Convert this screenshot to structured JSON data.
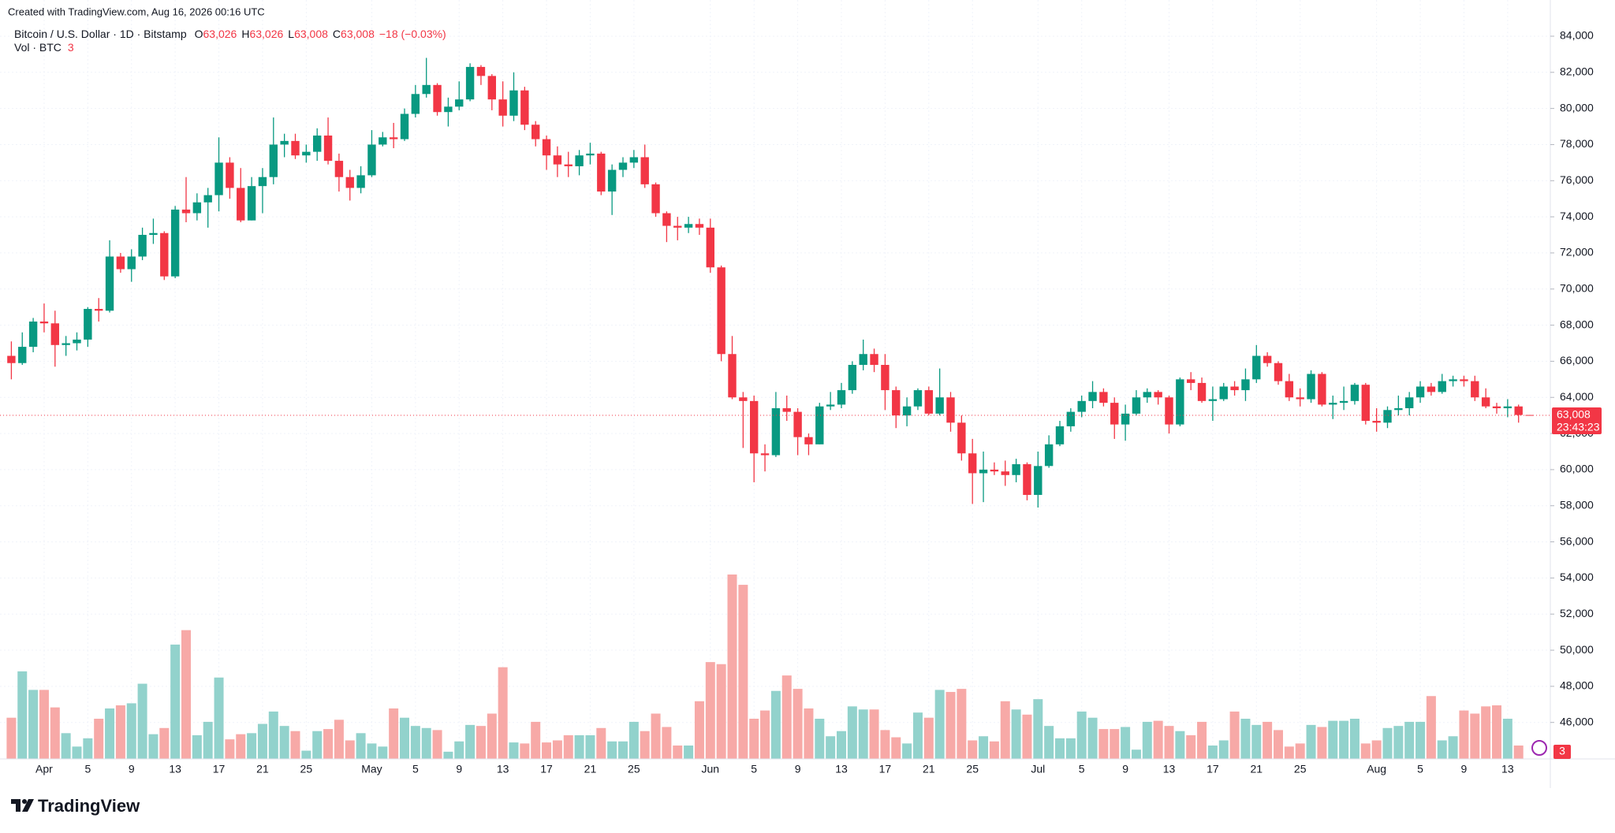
{
  "header": {
    "created": "Created with TradingView.com, Aug 16, 2026 00:16 UTC",
    "symbol": "Bitcoin / U.S. Dollar · 1D · Bitstamp",
    "ohlc_legend": [
      {
        "key": "O",
        "value": "63,026"
      },
      {
        "key": "H",
        "value": "63,026"
      },
      {
        "key": "L",
        "value": "63,008"
      },
      {
        "key": "C",
        "value": "63,008"
      }
    ],
    "change": "−18 (−0.03%)",
    "volume_legend": "Vol · BTC",
    "price_label": "63,008",
    "countdown": "23:43:23"
  },
  "footer": {
    "logo": "TradingView"
  },
  "chart_data": {
    "type": "candlestick",
    "categories": [
      "Mar 29",
      "Mar 30",
      "Mar 31",
      "Apr 1",
      "Apr 2",
      "Apr 3",
      "Apr 4",
      "Apr 5",
      "Apr 6",
      "Apr 7",
      "Apr 8",
      "Apr 9",
      "Apr 10",
      "Apr 11",
      "Apr 12",
      "Apr 13",
      "Apr 14",
      "Apr 15",
      "Apr 16",
      "Apr 17",
      "Apr 18",
      "Apr 19",
      "Apr 20",
      "Apr 21",
      "Apr 22",
      "Apr 23",
      "Apr 24",
      "Apr 25",
      "Apr 26",
      "Apr 27",
      "Apr 28",
      "Apr 29",
      "Apr 30",
      "May 1",
      "May 2",
      "May 3",
      "May 4",
      "May 5",
      "May 6",
      "May 7",
      "May 8",
      "May 9",
      "May 10",
      "May 11",
      "May 12",
      "May 13",
      "May 14",
      "May 15",
      "May 16",
      "May 17",
      "May 18",
      "May 19",
      "May 20",
      "May 21",
      "May 22",
      "May 23",
      "May 24",
      "May 25",
      "May 26",
      "May 27",
      "May 28",
      "May 29",
      "May 30",
      "May 31",
      "Jun 1",
      "Jun 2",
      "Jun 3",
      "Jun 4",
      "Jun 5",
      "Jun 6",
      "Jun 7",
      "Jun 8",
      "Jun 9",
      "Jun 10",
      "Jun 11",
      "Jun 12",
      "Jun 13",
      "Jun 14",
      "Jun 15",
      "Jun 16",
      "Jun 17",
      "Jun 18",
      "Jun 19",
      "Jun 20",
      "Jun 21",
      "Jun 22",
      "Jun 23",
      "Jun 24",
      "Jun 25",
      "Jun 26",
      "Jun 27",
      "Jun 28",
      "Jun 29",
      "Jun 30",
      "Jul 1",
      "Jul 2",
      "Jul 3",
      "Jul 4",
      "Jul 5",
      "Jul 6",
      "Jul 7",
      "Jul 8",
      "Jul 9",
      "Jul 10",
      "Jul 11",
      "Jul 12",
      "Jul 13",
      "Jul 14",
      "Jul 15",
      "Jul 16",
      "Jul 17",
      "Jul 18",
      "Jul 19",
      "Jul 20",
      "Jul 21",
      "Jul 22",
      "Jul 23",
      "Jul 24",
      "Jul 25",
      "Jul 26",
      "Jul 27",
      "Jul 28",
      "Jul 29",
      "Jul 30",
      "Jul 31",
      "Aug 1",
      "Aug 2",
      "Aug 3",
      "Aug 4",
      "Aug 5",
      "Aug 6",
      "Aug 7",
      "Aug 8",
      "Aug 9",
      "Aug 10",
      "Aug 11",
      "Aug 12",
      "Aug 13",
      "Aug 14",
      "Aug 15"
    ],
    "open": [
      66300,
      65900,
      66800,
      68200,
      68100,
      66900,
      67000,
      67200,
      68900,
      68800,
      71800,
      71100,
      71800,
      73000,
      73100,
      70700,
      74400,
      74200,
      74800,
      75200,
      77000,
      75600,
      73800,
      75700,
      76200,
      78000,
      78200,
      77400,
      77600,
      78500,
      77100,
      76200,
      75600,
      76300,
      78000,
      78400,
      78300,
      79700,
      80800,
      81300,
      79800,
      80100,
      80500,
      82300,
      81800,
      80500,
      79600,
      81000,
      79100,
      78300,
      77400,
      76900,
      76800,
      77400,
      77500,
      75400,
      76600,
      77000,
      77300,
      75800,
      74200,
      73500,
      73400,
      73600,
      73400,
      71200,
      66400,
      64000,
      63800,
      60900,
      60800,
      63400,
      63200,
      61800,
      61400,
      63500,
      63600,
      64400,
      65800,
      66400,
      65800,
      64400,
      63000,
      63500,
      64400,
      63100,
      64000,
      62600,
      60900,
      59800,
      60000,
      59900,
      59700,
      60300,
      58600,
      60200,
      61400,
      62400,
      63200,
      63800,
      64300,
      63700,
      62500,
      63100,
      64000,
      64300,
      64000,
      62500,
      65000,
      64800,
      63800,
      63900,
      64600,
      64400,
      65000,
      66300,
      65900,
      64900,
      64000,
      63900,
      65300,
      63600,
      63700,
      63800,
      64700,
      62700,
      62600,
      63300,
      63400,
      64000,
      64600,
      64300,
      64900,
      65000,
      64900,
      64000,
      63500,
      63400,
      63500,
      63026
    ],
    "high": [
      67100,
      67600,
      68400,
      69200,
      68800,
      67400,
      67600,
      69000,
      69500,
      72700,
      72000,
      72200,
      73400,
      73900,
      73200,
      74600,
      76200,
      75300,
      75600,
      78400,
      77300,
      76700,
      76200,
      76700,
      79500,
      78600,
      78600,
      78000,
      78900,
      79500,
      77500,
      76600,
      76800,
      78800,
      78700,
      79200,
      80000,
      81300,
      82800,
      81400,
      80600,
      81500,
      82500,
      82400,
      81900,
      81500,
      82000,
      81200,
      79300,
      78500,
      77900,
      77600,
      77700,
      78100,
      77600,
      76900,
      77300,
      77700,
      78000,
      75900,
      74300,
      74000,
      74000,
      73900,
      73900,
      71300,
      67400,
      64300,
      64100,
      61400,
      64300,
      64100,
      63400,
      62000,
      63700,
      64300,
      64800,
      66000,
      67200,
      66700,
      66400,
      64600,
      64000,
      64500,
      64600,
      65600,
      64300,
      63000,
      61700,
      61000,
      60400,
      60500,
      60600,
      60400,
      61000,
      61900,
      62700,
      63400,
      64100,
      64900,
      64500,
      64000,
      63600,
      64400,
      64500,
      64400,
      64100,
      65100,
      65400,
      65100,
      64600,
      64800,
      64900,
      65600,
      66900,
      66500,
      66000,
      65300,
      64500,
      65500,
      65400,
      64100,
      64600,
      64800,
      64800,
      63400,
      63500,
      64100,
      64300,
      64900,
      64800,
      65300,
      65200,
      65200,
      65200,
      64500,
      63700,
      63900,
      63600,
      63026
    ],
    "low": [
      65000,
      65800,
      66500,
      67600,
      65700,
      66300,
      66600,
      66800,
      68200,
      68700,
      70900,
      70400,
      71600,
      72500,
      70500,
      70600,
      73700,
      73800,
      73400,
      74300,
      75000,
      73700,
      73800,
      74200,
      75800,
      77300,
      77200,
      77000,
      77100,
      76900,
      75400,
      74900,
      75300,
      76200,
      77900,
      77800,
      78200,
      79500,
      80600,
      79600,
      79000,
      79900,
      80400,
      81300,
      79900,
      79000,
      79300,
      78800,
      77900,
      76600,
      76200,
      76200,
      76300,
      76900,
      75200,
      74100,
      76200,
      76700,
      75600,
      74000,
      72600,
      72700,
      73100,
      73000,
      70900,
      66000,
      63900,
      61200,
      59300,
      59900,
      60700,
      62700,
      60800,
      60800,
      61400,
      63300,
      63400,
      64200,
      65500,
      65400,
      63300,
      62300,
      62400,
      63300,
      63000,
      63000,
      62100,
      60500,
      58100,
      58200,
      59700,
      59100,
      59300,
      58300,
      57900,
      60100,
      61300,
      62100,
      62900,
      63400,
      63500,
      61700,
      61600,
      63000,
      63700,
      63600,
      62000,
      62400,
      64400,
      63700,
      62700,
      63800,
      64100,
      63800,
      64800,
      65700,
      64700,
      63800,
      63500,
      63700,
      63500,
      62800,
      63300,
      63600,
      62500,
      62100,
      62300,
      63000,
      63000,
      63700,
      64100,
      64200,
      64600,
      64600,
      63800,
      63400,
      63100,
      62900,
      62600,
      63008
    ],
    "close": [
      65900,
      66800,
      68200,
      68100,
      66900,
      67000,
      67200,
      68900,
      68800,
      71800,
      71100,
      71800,
      73000,
      73100,
      70700,
      74400,
      74200,
      74800,
      75200,
      77000,
      75600,
      73800,
      75700,
      76200,
      78000,
      78200,
      77400,
      77600,
      78500,
      77100,
      76200,
      75600,
      76300,
      78000,
      78400,
      78300,
      79700,
      80800,
      81300,
      79800,
      80100,
      80500,
      82300,
      81800,
      80500,
      79600,
      81000,
      79100,
      78300,
      77400,
      76900,
      76800,
      77400,
      77500,
      75400,
      76600,
      77000,
      77300,
      75800,
      74200,
      73500,
      73400,
      73600,
      73400,
      71200,
      66400,
      64000,
      63800,
      60900,
      60800,
      63400,
      63200,
      61800,
      61400,
      63500,
      63600,
      64400,
      65800,
      66400,
      65800,
      64400,
      63000,
      63500,
      64400,
      63100,
      64000,
      62600,
      60900,
      59800,
      60000,
      59900,
      59700,
      60300,
      58600,
      60200,
      61400,
      62400,
      63200,
      63800,
      64300,
      63700,
      62500,
      63100,
      64000,
      64300,
      64000,
      62500,
      65000,
      64800,
      63800,
      63900,
      64600,
      64400,
      65000,
      66300,
      65900,
      64900,
      64000,
      63900,
      65300,
      63600,
      63700,
      63800,
      64700,
      62700,
      62600,
      63300,
      63400,
      64000,
      64600,
      64300,
      64900,
      65000,
      64900,
      64000,
      63500,
      63400,
      63500,
      63026,
      63008
    ],
    "volume": [
      400,
      850,
      670,
      670,
      500,
      250,
      120,
      200,
      390,
      490,
      520,
      540,
      730,
      240,
      300,
      1110,
      1250,
      230,
      360,
      790,
      190,
      240,
      250,
      340,
      460,
      320,
      270,
      80,
      270,
      290,
      380,
      180,
      250,
      150,
      120,
      490,
      400,
      320,
      300,
      280,
      70,
      170,
      330,
      320,
      440,
      890,
      160,
      150,
      360,
      160,
      180,
      230,
      230,
      230,
      300,
      170,
      170,
      360,
      270,
      440,
      310,
      130,
      130,
      560,
      940,
      920,
      1790,
      1690,
      390,
      470,
      660,
      810,
      680,
      490,
      390,
      220,
      270,
      510,
      480,
      480,
      280,
      210,
      150,
      450,
      400,
      670,
      650,
      680,
      180,
      220,
      170,
      560,
      480,
      430,
      580,
      320,
      200,
      200,
      460,
      400,
      290,
      290,
      310,
      90,
      360,
      370,
      320,
      270,
      230,
      360,
      130,
      180,
      460,
      390,
      330,
      360,
      280,
      120,
      150,
      330,
      310,
      370,
      370,
      390,
      150,
      180,
      300,
      320,
      360,
      360,
      610,
      180,
      220,
      470,
      440,
      510,
      520,
      390,
      130,
      3
    ],
    "up_color": "#089981",
    "down_color": "#f23645",
    "up_volume_color": "#92d2cc",
    "down_volume_color": "#f7a9a7",
    "ylim": [
      43980,
      84740
    ],
    "yticks": [
      {
        "value": 46000,
        "label": "46,000"
      },
      {
        "value": 48000,
        "label": "48,000"
      },
      {
        "value": 50000,
        "label": "50,000"
      },
      {
        "value": 52000,
        "label": "52,000"
      },
      {
        "value": 54000,
        "label": "54,000"
      },
      {
        "value": 56000,
        "label": "56,000"
      },
      {
        "value": 58000,
        "label": "58,000"
      },
      {
        "value": 60000,
        "label": "60,000"
      },
      {
        "value": 62000,
        "label": "62,000"
      },
      {
        "value": 64000,
        "label": "64,000"
      },
      {
        "value": 66000,
        "label": "66,000"
      },
      {
        "value": 68000,
        "label": "68,000"
      },
      {
        "value": 70000,
        "label": "70,000"
      },
      {
        "value": 72000,
        "label": "72,000"
      },
      {
        "value": 74000,
        "label": "74,000"
      },
      {
        "value": 76000,
        "label": "76,000"
      },
      {
        "value": 78000,
        "label": "78,000"
      },
      {
        "value": 80000,
        "label": "80,000"
      },
      {
        "value": 82000,
        "label": "82,000"
      },
      {
        "value": 84000,
        "label": "84,000"
      }
    ],
    "xticks": [
      {
        "value": "Apr 1",
        "label": "Apr"
      },
      {
        "value": "Apr 5",
        "label": "5"
      },
      {
        "value": "Apr 9",
        "label": "9"
      },
      {
        "value": "Apr 13",
        "label": "13"
      },
      {
        "value": "Apr 17",
        "label": "17"
      },
      {
        "value": "Apr 21",
        "label": "21"
      },
      {
        "value": "Apr 25",
        "label": "25"
      },
      {
        "value": "May 1",
        "label": "May"
      },
      {
        "value": "May 5",
        "label": "5"
      },
      {
        "value": "May 9",
        "label": "9"
      },
      {
        "value": "May 13",
        "label": "13"
      },
      {
        "value": "May 17",
        "label": "17"
      },
      {
        "value": "May 21",
        "label": "21"
      },
      {
        "value": "May 25",
        "label": "25"
      },
      {
        "value": "Jun 1",
        "label": "Jun"
      },
      {
        "value": "Jun 5",
        "label": "5"
      },
      {
        "value": "Jun 9",
        "label": "9"
      },
      {
        "value": "Jun 13",
        "label": "13"
      },
      {
        "value": "Jun 17",
        "label": "17"
      },
      {
        "value": "Jun 21",
        "label": "21"
      },
      {
        "value": "Jun 25",
        "label": "25"
      },
      {
        "value": "Jul 1",
        "label": "Jul"
      },
      {
        "value": "Jul 5",
        "label": "5"
      },
      {
        "value": "Jul 9",
        "label": "9"
      },
      {
        "value": "Jul 13",
        "label": "13"
      },
      {
        "value": "Jul 17",
        "label": "17"
      },
      {
        "value": "Jul 21",
        "label": "21"
      },
      {
        "value": "Jul 25",
        "label": "25"
      },
      {
        "value": "Aug 1",
        "label": "Aug"
      },
      {
        "value": "Aug 5",
        "label": "5"
      },
      {
        "value": "Aug 9",
        "label": "9"
      },
      {
        "value": "Aug 13",
        "label": "13"
      }
    ],
    "grid": true
  }
}
